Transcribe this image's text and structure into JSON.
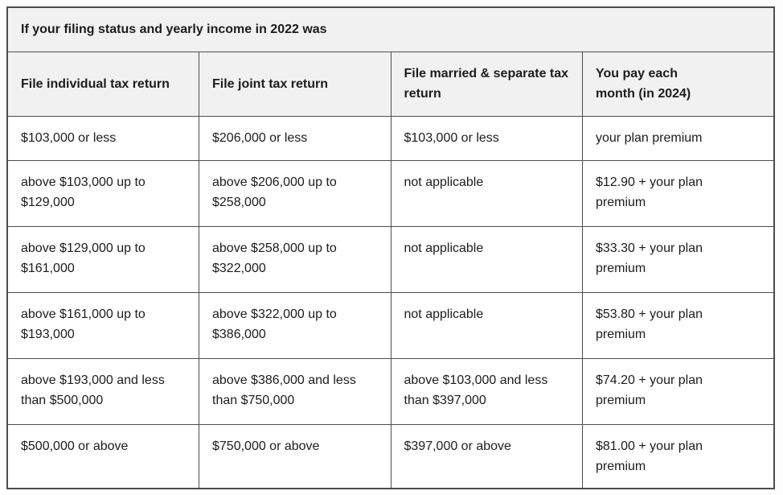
{
  "table": {
    "title": "If your filing status and yearly income in 2022 was",
    "columns": [
      "File individual tax return",
      "File joint tax return",
      "File married & separate tax\nreturn",
      "You pay each\nmonth (in 2024)"
    ],
    "rows": [
      [
        "$103,000 or less",
        "$206,000 or less",
        "$103,000 or less",
        "your plan premium"
      ],
      [
        "above $103,000 up to\n$129,000",
        "above $206,000 up to\n$258,000",
        "not applicable",
        "$12.90 + your plan\npremium"
      ],
      [
        "above $129,000 up to\n$161,000",
        "above $258,000 up to\n$322,000",
        "not applicable",
        "$33.30 + your plan\npremium"
      ],
      [
        "above $161,000 up to\n$193,000",
        "above $322,000 up to\n$386,000",
        "not applicable",
        "$53.80 + your plan\npremium"
      ],
      [
        "above $193,000 and less\nthan $500,000",
        "above $386,000 and less\nthan $750,000",
        "above $103,000 and less\nthan $397,000",
        "$74.20 + your plan\npremium"
      ],
      [
        "$500,000 or above",
        "$750,000 or above",
        "$397,000 or above",
        "$81.00 + your plan\npremium"
      ]
    ],
    "colors": {
      "header_bg": "#f1f1f2",
      "body_bg": "#ffffff",
      "border": "#4d4d4d",
      "text": "#1c1c1c"
    }
  }
}
